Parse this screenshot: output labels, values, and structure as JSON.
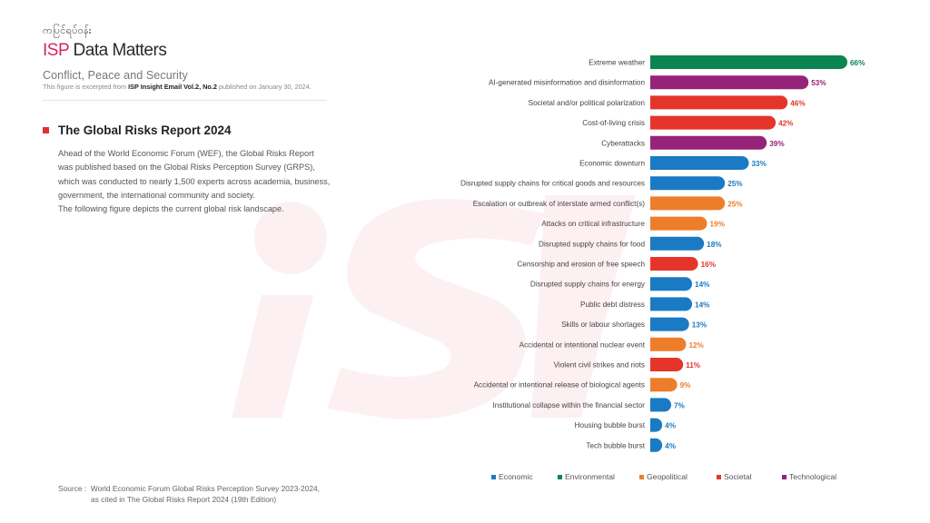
{
  "header": {
    "myanmar_title": "ကပြင်ရပ်ဝန်း",
    "brand_isp": "ISP",
    "brand_rest": " Data Matters",
    "section": "Conflict, Peace and Security",
    "excerpt_prefix": "This figure is excerpted from ",
    "excerpt_bold": "ISP Insight Email Vol.2, No.2",
    "excerpt_suffix": " published on January 30, 2024."
  },
  "report": {
    "title": "The Global Risks Report 2024",
    "intro_lines": [
      "Ahead of the World Economic Forum (WEF), the Global Risks Report",
      "was published based on the Global Risks Perception Survey (GRPS),",
      "which was conducted to nearly 1,500 experts across academia, business,",
      "government, the international community and society.",
      "The following figure depicts the current global risk landscape."
    ]
  },
  "source": {
    "label": "Source :",
    "line1": "World Economic Forum Global Risks Perception Survey 2023-2024,",
    "line2": "as cited in The Global Risks Report 2024 (19th Edition)"
  },
  "colors": {
    "Economic": "#1a7ac4",
    "Environmental": "#0a8450",
    "Geopolitical": "#ee7d2b",
    "Societal": "#e5352b",
    "Technological": "#952377",
    "brand": "#d6265b"
  },
  "chart_data": {
    "type": "bar",
    "orientation": "horizontal",
    "title": "",
    "xlabel": "",
    "ylabel": "",
    "xlim": [
      0,
      66
    ],
    "grid": false,
    "legend_position": "bottom",
    "value_suffix": "%",
    "categories": [
      "Extreme weather",
      "AI-generated misinformation and disinformation",
      "Societal and/or political polarization",
      "Cost-of-living crisis",
      "Cyberattacks",
      "Economic downturn",
      "Disrupted supply chains for critical goods and resources",
      "Escalation or outbreak of interstate armed conflict(s)",
      "Attacks on critical infrastructure",
      "Disrupted supply chains for food",
      "Censorship and erosion of free speech",
      "Disrupted supply chains for energy",
      "Public debt distress",
      "Skills or labour shortages",
      "Accidental or intentional nuclear event",
      "Violent civil strikes and riots",
      "Accidental or intentional release of biological agents",
      "Institutional collapse within the financial sector",
      "Housing bubble burst",
      "Tech bubble burst"
    ],
    "values": [
      66,
      53,
      46,
      42,
      39,
      33,
      25,
      25,
      19,
      18,
      16,
      14,
      14,
      13,
      12,
      11,
      9,
      7,
      4,
      4
    ],
    "groups": [
      "Environmental",
      "Technological",
      "Societal",
      "Societal",
      "Technological",
      "Economic",
      "Economic",
      "Geopolitical",
      "Geopolitical",
      "Economic",
      "Societal",
      "Economic",
      "Economic",
      "Economic",
      "Geopolitical",
      "Societal",
      "Geopolitical",
      "Economic",
      "Economic",
      "Economic"
    ],
    "legend": [
      "Economic",
      "Environmental",
      "Geopolitical",
      "Societal",
      "Technological"
    ]
  }
}
